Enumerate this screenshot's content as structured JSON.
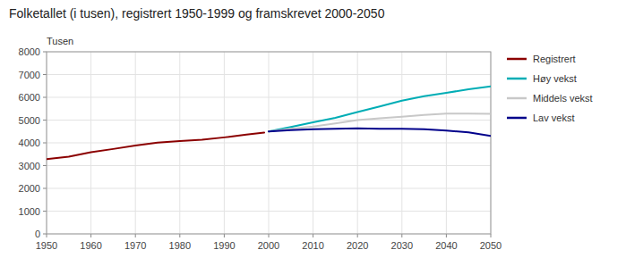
{
  "chart_data": {
    "type": "line",
    "title": "Folketallet (i tusen), registrert 1950-1999 og framskrevet 2000-2050",
    "ylabel": "Tusen",
    "xlim": [
      1950,
      2050
    ],
    "xticks": [
      1950,
      1960,
      1970,
      1980,
      1990,
      2000,
      2010,
      2020,
      2030,
      2040,
      2050
    ],
    "ylim": [
      0,
      8000
    ],
    "yticks": [
      0,
      1000,
      2000,
      3000,
      4000,
      5000,
      6000,
      7000,
      8000
    ],
    "grid": true,
    "legend": "right",
    "series": [
      {
        "name": "Registrert",
        "color": "#8b0000",
        "x": [
          1950,
          1955,
          1960,
          1965,
          1970,
          1975,
          1980,
          1985,
          1990,
          1995,
          1999
        ],
        "values": [
          3280,
          3390,
          3590,
          3730,
          3880,
          4010,
          4080,
          4140,
          4240,
          4360,
          4450
        ]
      },
      {
        "name": "Høy vekst",
        "color": "#00adb5",
        "x": [
          2000,
          2005,
          2010,
          2015,
          2020,
          2025,
          2030,
          2035,
          2040,
          2045,
          2050
        ],
        "values": [
          4500,
          4700,
          4900,
          5100,
          5350,
          5600,
          5850,
          6050,
          6200,
          6350,
          6480
        ]
      },
      {
        "name": "Middels vekst",
        "color": "#c8c8c8",
        "x": [
          2000,
          2005,
          2010,
          2015,
          2020,
          2025,
          2030,
          2035,
          2040,
          2045,
          2050
        ],
        "values": [
          4500,
          4620,
          4720,
          4850,
          5000,
          5080,
          5150,
          5230,
          5280,
          5280,
          5270
        ]
      },
      {
        "name": "Lav vekst",
        "color": "#00008b",
        "x": [
          2000,
          2005,
          2010,
          2015,
          2020,
          2025,
          2030,
          2035,
          2040,
          2045,
          2050
        ],
        "values": [
          4500,
          4560,
          4600,
          4620,
          4640,
          4620,
          4620,
          4600,
          4540,
          4460,
          4300
        ]
      }
    ]
  }
}
